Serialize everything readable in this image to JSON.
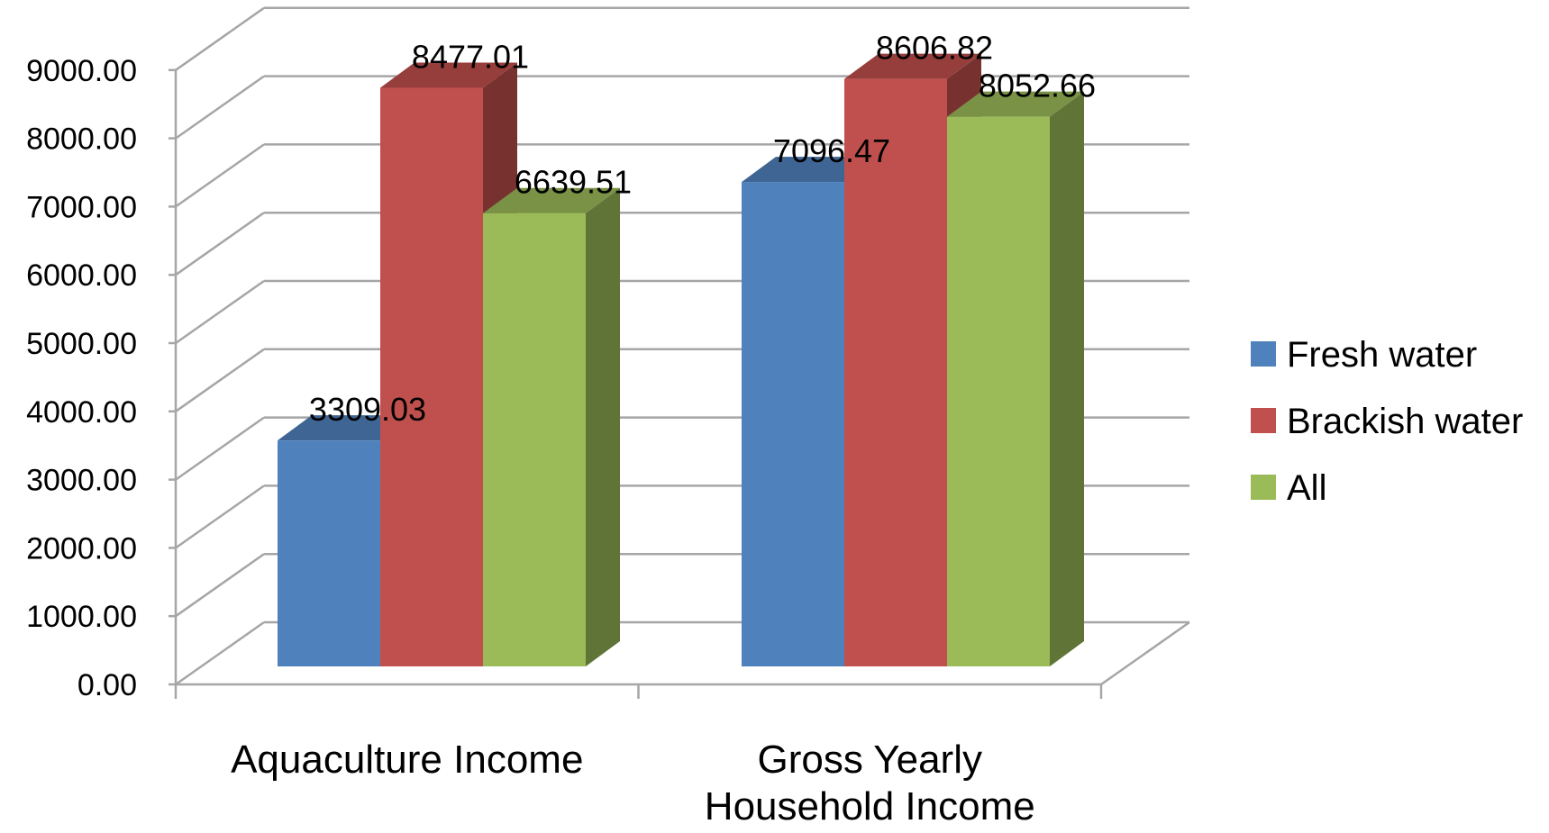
{
  "chart_data": {
    "type": "bar",
    "title": "",
    "xlabel": "",
    "ylabel": "",
    "categories": [
      "Aquaculture Income",
      "Gross Yearly Household Income"
    ],
    "series": [
      {
        "name": "Fresh water",
        "values": [
          3309.03,
          7096.47
        ],
        "color": "#4F81BD"
      },
      {
        "name": "Brackish water",
        "values": [
          8477.01,
          8606.82
        ],
        "color": "#C0504D"
      },
      {
        "name": "All",
        "values": [
          6639.51,
          8052.66
        ],
        "color": "#9BBB59"
      }
    ],
    "ylim": [
      0,
      9000
    ],
    "yticks": [
      0,
      1000,
      2000,
      3000,
      4000,
      5000,
      6000,
      7000,
      8000,
      9000
    ],
    "ytick_labels": [
      "0.00",
      "1000.00",
      "2000.00",
      "3000.00",
      "4000.00",
      "5000.00",
      "6000.00",
      "7000.00",
      "8000.00",
      "9000.00"
    ],
    "data_labels": [
      [
        "3309.03",
        "7096.47"
      ],
      [
        "8477.01",
        "8606.82"
      ],
      [
        "6639.51",
        "8052.66"
      ]
    ],
    "grid": true,
    "legend_position": "right",
    "style": "3d-clustered-column"
  }
}
